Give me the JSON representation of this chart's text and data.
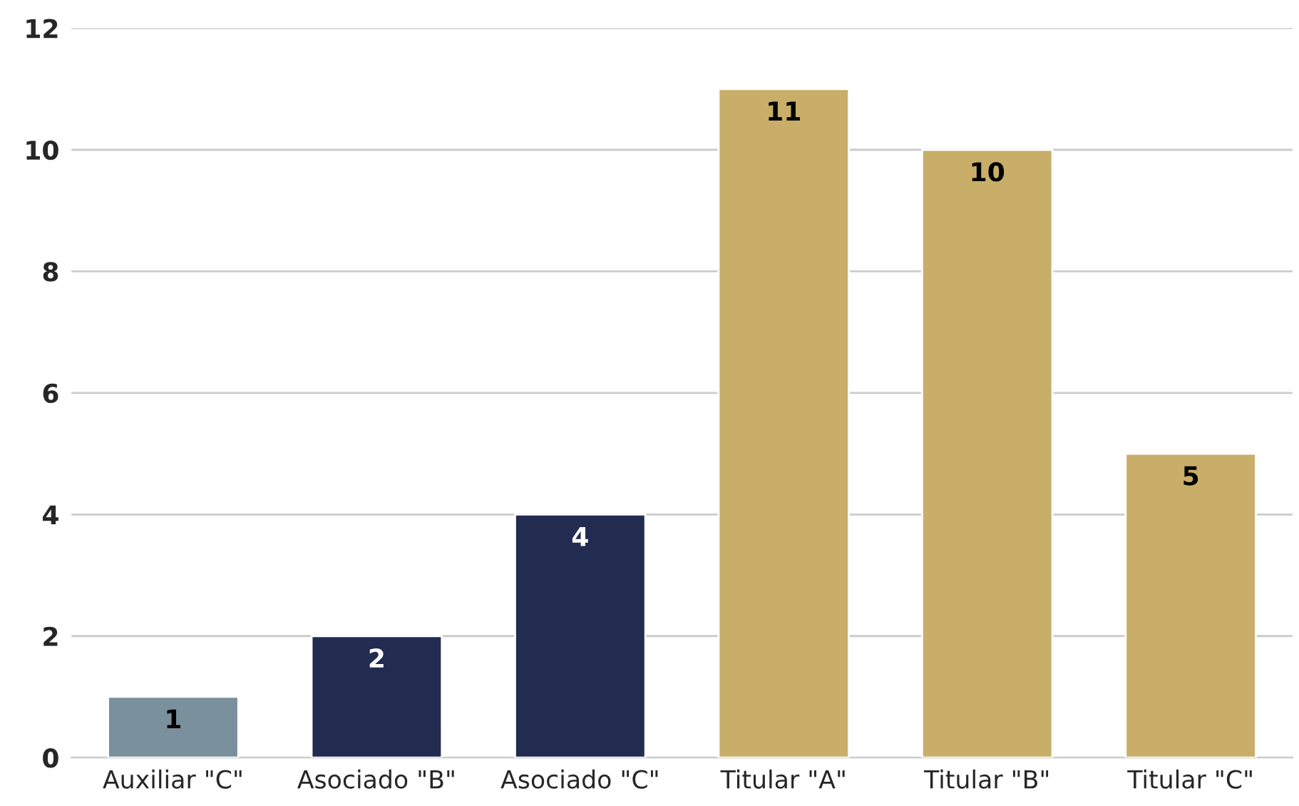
{
  "chart_data": {
    "type": "bar",
    "categories": [
      "Auxiliar \"C\"",
      "Asociado \"B\"",
      "Asociado \"C\"",
      "Titular \"A\"",
      "Titular \"B\"",
      "Titular \"C\""
    ],
    "values": [
      1,
      2,
      4,
      11,
      10,
      5
    ],
    "colors": [
      "#7a909c",
      "#222b50",
      "#222b50",
      "#c8ae69",
      "#c8ae69",
      "#c8ae69"
    ],
    "ylim": [
      0,
      12
    ],
    "yticks": [
      0,
      2,
      4,
      6,
      8,
      10,
      12
    ],
    "grid": "y",
    "data_labels": true
  }
}
